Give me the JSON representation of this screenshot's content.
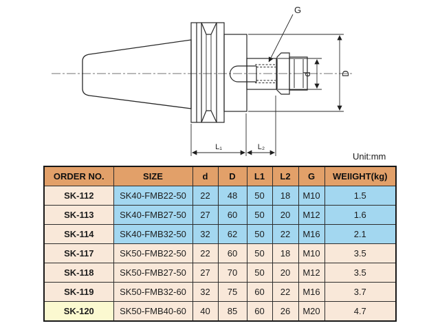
{
  "drawing": {
    "labels": {
      "g": "G",
      "d_small": "d",
      "d_big": "D",
      "l1": "L₁",
      "l2": "L₂"
    },
    "unit_note": "Unit:mm"
  },
  "table": {
    "headers": [
      "ORDER NO.",
      "SIZE",
      "d",
      "D",
      "L1",
      "L2",
      "G",
      "WEIIGHT(kg)"
    ],
    "rows": [
      {
        "order": "SK-112",
        "size": "SK40-FMB22-50",
        "d": "22",
        "D": "48",
        "l1": "50",
        "l2": "18",
        "g": "M10",
        "weight": "1.5",
        "order_bg": "cream",
        "data_bg": "blue"
      },
      {
        "order": "SK-113",
        "size": "SK40-FMB27-50",
        "d": "27",
        "D": "60",
        "l1": "50",
        "l2": "20",
        "g": "M12",
        "weight": "1.6",
        "order_bg": "cream",
        "data_bg": "blue"
      },
      {
        "order": "SK-114",
        "size": "SK40-FMB32-50",
        "d": "32",
        "D": "62",
        "l1": "50",
        "l2": "22",
        "g": "M16",
        "weight": "2.1",
        "order_bg": "cream",
        "data_bg": "blue"
      },
      {
        "order": "SK-117",
        "size": "SK50-FMB22-50",
        "d": "22",
        "D": "60",
        "l1": "50",
        "l2": "18",
        "g": "M10",
        "weight": "3.5",
        "order_bg": "cream",
        "data_bg": "cream"
      },
      {
        "order": "SK-118",
        "size": "SK50-FMB27-50",
        "d": "27",
        "D": "70",
        "l1": "50",
        "l2": "20",
        "g": "M12",
        "weight": "3.5",
        "order_bg": "cream",
        "data_bg": "cream"
      },
      {
        "order": "SK-119",
        "size": "SK50-FMB32-60",
        "d": "32",
        "D": "75",
        "l1": "60",
        "l2": "22",
        "g": "M16",
        "weight": "3.7",
        "order_bg": "cream",
        "data_bg": "cream"
      },
      {
        "order": "SK-120",
        "size": "SK50-FMB40-60",
        "d": "40",
        "D": "85",
        "l1": "60",
        "l2": "26",
        "g": "M20",
        "weight": "4.7",
        "order_bg": "yellow",
        "data_bg": "cream"
      }
    ]
  },
  "colors": {
    "header_bg": "#e2a069",
    "blue": "#a3d7f0",
    "cream": "#f9e8d9",
    "yellow": "#fbf9d0"
  }
}
